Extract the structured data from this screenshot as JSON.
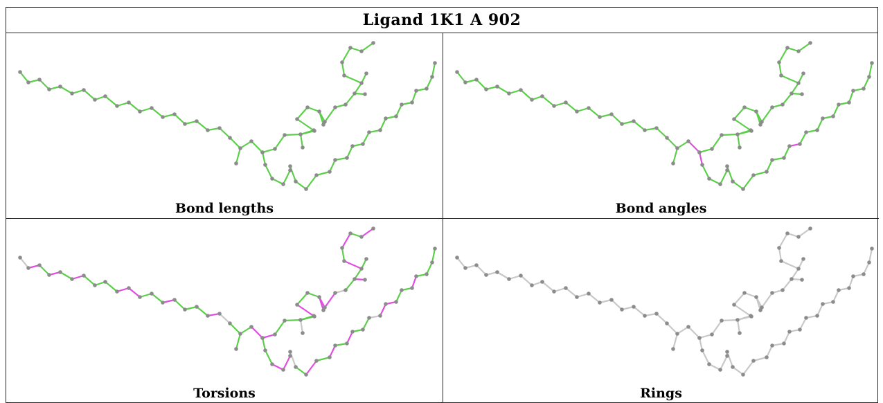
{
  "title": "Ligand 1K1 A 902",
  "panels": [
    {
      "caption": "Bond lengths",
      "scheme": "lengths"
    },
    {
      "caption": "Bond angles",
      "scheme": "angles"
    },
    {
      "caption": "Torsions",
      "scheme": "torsions"
    },
    {
      "caption": "Rings",
      "scheme": "rings"
    }
  ],
  "colors": {
    "ok": "#5ccf4a",
    "outlier": "#e04ee0",
    "neutral": "#c8c8c8",
    "atom": "#8c8c8c"
  }
}
